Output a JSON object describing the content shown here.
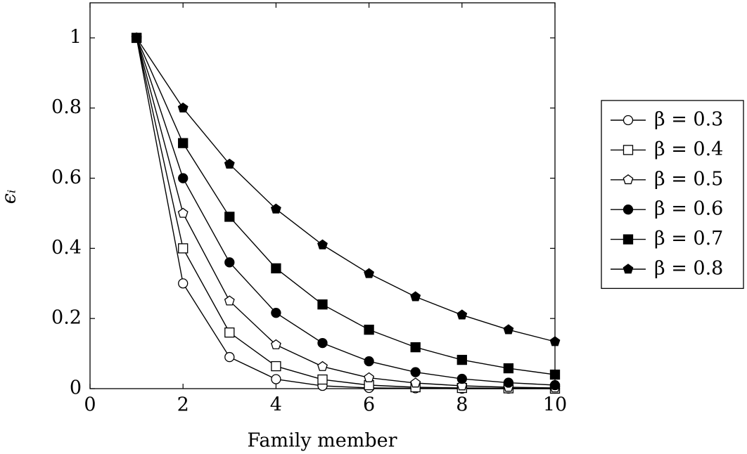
{
  "chart_data": {
    "type": "line",
    "xlabel": "Family member",
    "ylabel": "ϵᵢ",
    "x": [
      1,
      2,
      3,
      4,
      5,
      6,
      7,
      8,
      9,
      10
    ],
    "series": [
      {
        "name": "β = 0.3",
        "color": "#000000",
        "marker": "circle",
        "filled": false,
        "values": [
          1,
          0.3,
          0.09,
          0.027,
          0.008,
          0.002,
          0.001,
          0,
          0,
          0
        ]
      },
      {
        "name": "β = 0.4",
        "color": "#000000",
        "marker": "square",
        "filled": false,
        "values": [
          1,
          0.4,
          0.16,
          0.064,
          0.026,
          0.01,
          0.004,
          0.002,
          0.001,
          0
        ]
      },
      {
        "name": "β = 0.5",
        "color": "#000000",
        "marker": "pentagon",
        "filled": false,
        "values": [
          1,
          0.5,
          0.25,
          0.125,
          0.063,
          0.031,
          0.016,
          0.008,
          0.004,
          0.002
        ]
      },
      {
        "name": "β = 0.6",
        "color": "#000000",
        "marker": "circle",
        "filled": true,
        "values": [
          1,
          0.6,
          0.36,
          0.216,
          0.13,
          0.078,
          0.047,
          0.028,
          0.017,
          0.01
        ]
      },
      {
        "name": "β = 0.7",
        "color": "#000000",
        "marker": "square",
        "filled": true,
        "values": [
          1,
          0.7,
          0.49,
          0.343,
          0.24,
          0.168,
          0.118,
          0.082,
          0.058,
          0.04
        ]
      },
      {
        "name": "β = 0.8",
        "color": "#000000",
        "marker": "pentagon",
        "filled": true,
        "values": [
          1,
          0.8,
          0.64,
          0.512,
          0.41,
          0.328,
          0.262,
          0.21,
          0.168,
          0.134
        ]
      }
    ],
    "xlim": [
      0,
      10
    ],
    "xticks": [
      0,
      2,
      4,
      6,
      8,
      10
    ],
    "ylim": [
      0,
      1.1
    ],
    "yticks": [
      0,
      0.2,
      0.4,
      0.6,
      0.8,
      1
    ],
    "grid": false,
    "legend": "outside-right"
  }
}
